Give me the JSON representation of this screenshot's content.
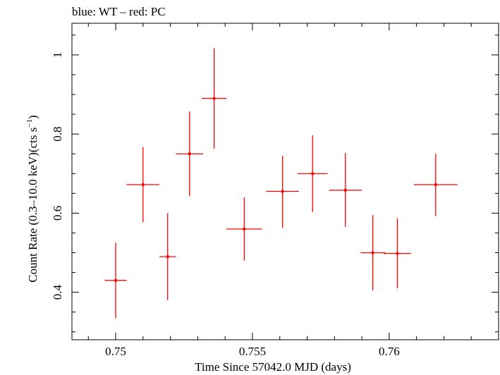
{
  "chart_data": {
    "type": "scatter",
    "title": "blue: WT – red: PC",
    "xlabel": "Time Since 57042.0 MJD (days)",
    "ylabel": "Count Rate (0.3–10.0 keV)(cts s",
    "ylabel_superscript": "−1",
    "ylabel_suffix": ")",
    "xlim": [
      0.7484,
      0.764
    ],
    "ylim": [
      0.28,
      1.08
    ],
    "x_ticks": [
      0.75,
      0.755,
      0.76
    ],
    "x_tick_labels": [
      "0.75",
      "0.755",
      "0.76"
    ],
    "y_ticks": [
      0.4,
      0.6,
      0.8,
      1.0
    ],
    "y_tick_labels": [
      "0.4",
      "0.6",
      "0.8",
      "1"
    ],
    "series": [
      {
        "name": "PC",
        "color": "#ff0000",
        "points": [
          {
            "x": 0.75,
            "y": 0.43,
            "xerr": 0.0004,
            "ylo": 0.335,
            "yhi": 0.525
          },
          {
            "x": 0.751,
            "y": 0.672,
            "xerr": 0.0006,
            "ylo": 0.577,
            "yhi": 0.767
          },
          {
            "x": 0.7519,
            "y": 0.49,
            "xerr": 0.0003,
            "ylo": 0.38,
            "yhi": 0.6
          },
          {
            "x": 0.7527,
            "y": 0.75,
            "xerr": 0.0005,
            "ylo": 0.643,
            "yhi": 0.857
          },
          {
            "x": 0.7536,
            "y": 0.89,
            "xerr": 0.00045,
            "ylo": 0.763,
            "yhi": 1.017
          },
          {
            "x": 0.7547,
            "y": 0.56,
            "xerr": 0.00065,
            "ylo": 0.48,
            "yhi": 0.64
          },
          {
            "x": 0.7561,
            "y": 0.655,
            "xerr": 0.0006,
            "ylo": 0.563,
            "yhi": 0.745
          },
          {
            "x": 0.7572,
            "y": 0.7,
            "xerr": 0.00055,
            "ylo": 0.603,
            "yhi": 0.797
          },
          {
            "x": 0.7584,
            "y": 0.658,
            "xerr": 0.0006,
            "ylo": 0.565,
            "yhi": 0.752
          },
          {
            "x": 0.7594,
            "y": 0.5,
            "xerr": 0.00045,
            "ylo": 0.405,
            "yhi": 0.595
          },
          {
            "x": 0.7603,
            "y": 0.498,
            "xerr": 0.0005,
            "ylo": 0.41,
            "yhi": 0.587
          },
          {
            "x": 0.7617,
            "y": 0.672,
            "xerr": 0.0008,
            "ylo": 0.593,
            "yhi": 0.75
          }
        ]
      }
    ]
  }
}
